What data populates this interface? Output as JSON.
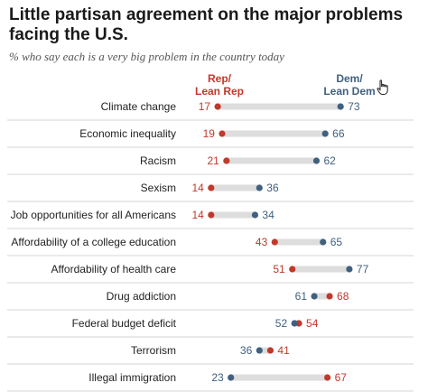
{
  "title": "Little partisan agreement on the major problems facing the U.S.",
  "subtitle": "% who say each is a very big problem in the country today",
  "legend": {
    "rep": "Rep/\nLean Rep",
    "dem": "Dem/\nLean Dem"
  },
  "colors": {
    "rep": "#c0392b",
    "dem": "#40607f",
    "bar": "#dddddd",
    "divider": "#d6d6d6"
  },
  "icons": {
    "cursor": "pointer-hand-icon"
  },
  "chart_data": {
    "type": "dot",
    "series": [
      {
        "name": "Rep/Lean Rep",
        "key": "rep"
      },
      {
        "name": "Dem/Lean Dem",
        "key": "dem"
      }
    ],
    "rows": [
      {
        "label": "Climate change",
        "rep": 17,
        "dem": 73
      },
      {
        "label": "Economic inequality",
        "rep": 19,
        "dem": 66
      },
      {
        "label": "Racism",
        "rep": 21,
        "dem": 62
      },
      {
        "label": "Sexism",
        "rep": 14,
        "dem": 36
      },
      {
        "label": "Job opportunities for all Americans",
        "rep": 14,
        "dem": 34
      },
      {
        "label": "Affordability of a college education",
        "rep": 43,
        "dem": 65
      },
      {
        "label": "Affordability of health care",
        "rep": 51,
        "dem": 77
      },
      {
        "label": "Drug addiction",
        "rep": 68,
        "dem": 61
      },
      {
        "label": "Federal budget deficit",
        "rep": 54,
        "dem": 52
      },
      {
        "label": "Terrorism",
        "rep": 41,
        "dem": 36
      },
      {
        "label": "Illegal immigration",
        "rep": 67,
        "dem": 23
      }
    ]
  }
}
